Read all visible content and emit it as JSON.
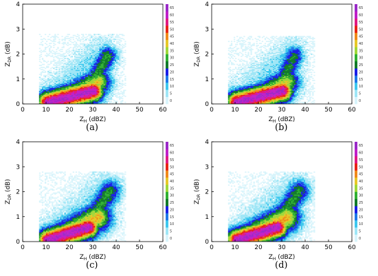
{
  "chart_data": [
    {
      "type": "heatmap",
      "panel_label": "(a)",
      "xlabel": "Z",
      "xlabel_sub": "H",
      "xlabel_unit": " (dBZ)",
      "ylabel": "Z",
      "ylabel_sub": "DR",
      "ylabel_unit": " (dB)",
      "xlim": [
        0,
        60
      ],
      "ylim": [
        0,
        4
      ],
      "x_ticks": [
        0,
        10,
        20,
        30,
        40,
        50,
        60
      ],
      "y_ticks": [
        0,
        1,
        2,
        3,
        4
      ],
      "colorbar_ticks": [
        0,
        5,
        10,
        15,
        20,
        25,
        30,
        35,
        40,
        45,
        50,
        55,
        60,
        65
      ],
      "density_field": {
        "lobes": [
          {
            "from": [
              10.5,
              0.04
            ],
            "to": [
              30,
              0.5
            ],
            "width_dbz": 3.2,
            "peak": 65
          },
          {
            "from": [
              19,
              0.2
            ],
            "to": [
              32,
              0.85
            ],
            "width_dbz": 3.8,
            "peak": 42
          },
          {
            "from": [
              30,
              0.9
            ],
            "to": [
              36,
              1.9
            ],
            "width_dbz": 3.0,
            "peak": 30
          }
        ],
        "halo_extent": {
          "x": [
            7,
            44
          ],
          "y": [
            0,
            2.8
          ]
        }
      }
    },
    {
      "type": "heatmap",
      "panel_label": "(b)",
      "xlabel": "Z",
      "xlabel_sub": "H",
      "xlabel_unit": " (dBZ)",
      "ylabel": "Z",
      "ylabel_sub": "DR",
      "ylabel_unit": " (dB)",
      "xlim": [
        0,
        60
      ],
      "ylim": [
        0,
        4
      ],
      "x_ticks": [
        0,
        10,
        20,
        30,
        40,
        50,
        60
      ],
      "y_ticks": [
        0,
        1,
        2,
        3,
        4
      ],
      "colorbar_ticks": [
        0,
        5,
        10,
        15,
        20,
        25,
        30,
        35,
        40,
        45,
        50,
        55,
        60,
        65
      ],
      "density_field": {
        "lobes": [
          {
            "from": [
              10.5,
              0.04
            ],
            "to": [
              30,
              0.5
            ],
            "width_dbz": 3.2,
            "peak": 65
          },
          {
            "from": [
              19,
              0.2
            ],
            "to": [
              32,
              0.85
            ],
            "width_dbz": 3.8,
            "peak": 40
          },
          {
            "from": [
              30,
              0.9
            ],
            "to": [
              35,
              1.9
            ],
            "width_dbz": 3.0,
            "peak": 28
          }
        ],
        "halo_extent": {
          "x": [
            7,
            44
          ],
          "y": [
            0,
            2.7
          ]
        }
      }
    },
    {
      "type": "heatmap",
      "panel_label": "(c)",
      "xlabel": "Z",
      "xlabel_sub": "H",
      "xlabel_unit": " (dBZ)",
      "ylabel": "Z",
      "ylabel_sub": "DR",
      "ylabel_unit": " (dB)",
      "xlim": [
        0,
        60
      ],
      "ylim": [
        0,
        4
      ],
      "x_ticks": [
        0,
        10,
        20,
        30,
        40,
        50,
        60
      ],
      "y_ticks": [
        0,
        1,
        2,
        3,
        4
      ],
      "colorbar_ticks": [
        0,
        5,
        10,
        15,
        20,
        25,
        30,
        35,
        40,
        45,
        50,
        55,
        60,
        65
      ],
      "density_field": {
        "lobes": [
          {
            "from": [
              10.5,
              0.04
            ],
            "to": [
              28,
              0.55
            ],
            "width_dbz": 3.2,
            "peak": 65
          },
          {
            "from": [
              17,
              0.2
            ],
            "to": [
              32,
              0.95
            ],
            "width_dbz": 4.2,
            "peak": 44
          },
          {
            "from": [
              30,
              1.0
            ],
            "to": [
              37,
              2.0
            ],
            "width_dbz": 3.4,
            "peak": 30
          }
        ],
        "halo_extent": {
          "x": [
            7,
            44
          ],
          "y": [
            0,
            2.8
          ]
        }
      }
    },
    {
      "type": "heatmap",
      "panel_label": "(d)",
      "xlabel": "Z",
      "xlabel_sub": "H",
      "xlabel_unit": " (dBZ)",
      "ylabel": "Z",
      "ylabel_sub": "DR",
      "ylabel_unit": " (dB)",
      "xlim": [
        0,
        60
      ],
      "ylim": [
        0,
        4
      ],
      "x_ticks": [
        0,
        10,
        20,
        30,
        40,
        50,
        60
      ],
      "y_ticks": [
        0,
        1,
        2,
        3,
        4
      ],
      "colorbar_ticks": [
        0,
        5,
        10,
        15,
        20,
        25,
        30,
        35,
        40,
        45,
        50,
        55,
        60,
        65
      ],
      "density_field": {
        "lobes": [
          {
            "from": [
              10.5,
              0.04
            ],
            "to": [
              28,
              0.55
            ],
            "width_dbz": 3.2,
            "peak": 65
          },
          {
            "from": [
              17,
              0.2
            ],
            "to": [
              32,
              0.95
            ],
            "width_dbz": 4.2,
            "peak": 44
          },
          {
            "from": [
              30,
              1.0
            ],
            "to": [
              37,
              2.0
            ],
            "width_dbz": 3.4,
            "peak": 30
          }
        ],
        "halo_extent": {
          "x": [
            7,
            44
          ],
          "y": [
            0,
            2.8
          ]
        }
      }
    }
  ],
  "colormap": [
    "#d8f4fb",
    "#9fe6f6",
    "#3ec8ee",
    "#1e78e8",
    "#1a1ee6",
    "#127a2a",
    "#30b032",
    "#9ed83a",
    "#e6c828",
    "#f08a1a",
    "#e82414",
    "#e01a82",
    "#c020c8",
    "#9a2ac8"
  ]
}
